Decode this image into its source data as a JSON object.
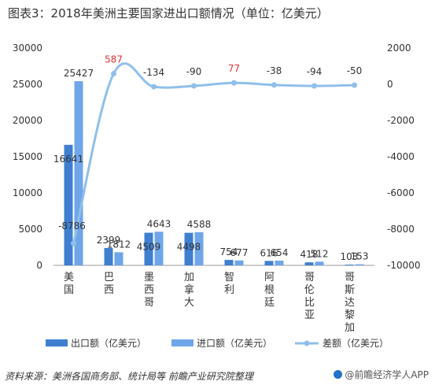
{
  "title": "图表3：2018年美洲主要国家进出口额情况（单位：亿美元）",
  "source": "资料来源：美洲各国商务部、统计局等 前瞻产业研究院整理",
  "brand": "@前瞻经济学人APP",
  "chart_data": {
    "type": "bar",
    "categories": [
      "美国",
      "巴西",
      "墨西哥",
      "加拿大",
      "智利",
      "阿根廷",
      "哥伦比亚",
      "哥斯达黎加"
    ],
    "series": [
      {
        "name": "出口额（亿美元）",
        "type": "bar",
        "axis": "left",
        "color": "#3e7fd0",
        "values": [
          16641,
          2399,
          4509,
          4498,
          754,
          616,
          418,
          103
        ]
      },
      {
        "name": "进口额（亿美元）",
        "type": "bar",
        "axis": "left",
        "color": "#6fa6ea",
        "values": [
          25427,
          1812,
          4643,
          4588,
          677,
          654,
          512,
          153
        ]
      },
      {
        "name": "差额（亿美元）",
        "type": "line",
        "axis": "right",
        "color": "#8fbfea",
        "values": [
          -8786,
          587,
          -134,
          -90,
          77,
          -38,
          -94,
          -50
        ]
      }
    ],
    "y_left": {
      "min": 0,
      "max": 30000,
      "ticks": [
        0,
        5000,
        10000,
        15000,
        20000,
        25000,
        30000
      ]
    },
    "y_right": {
      "min": -10000,
      "max": 2000,
      "ticks": [
        -10000,
        -8000,
        -6000,
        -4000,
        -2000,
        0,
        2000
      ]
    },
    "highlight_color": "#e03030",
    "highlighted_labels": [
      587,
      77
    ],
    "grid": false,
    "legend_position": "bottom"
  }
}
